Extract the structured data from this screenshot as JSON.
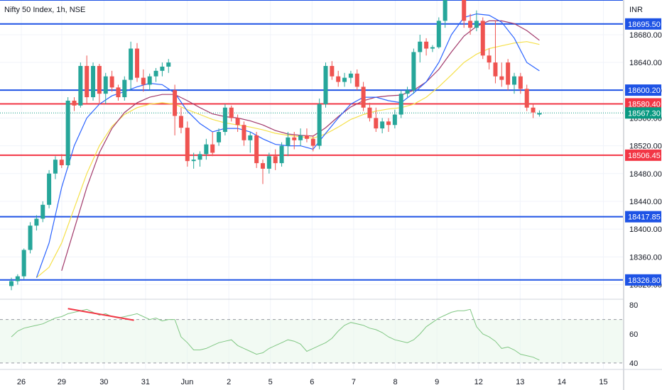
{
  "chart_data": {
    "type": "candlestick",
    "title": "Nifty 50 Index, 1h, NSE",
    "currency": "INR",
    "price_axis": {
      "ylim": [
        18300,
        18730
      ],
      "ticks": [
        18680,
        18640,
        18600,
        18560,
        18520,
        18480,
        18440,
        18400,
        18360,
        18320
      ]
    },
    "rsi_axis": {
      "ylim": [
        36,
        84
      ],
      "ticks": [
        80,
        60,
        40
      ],
      "bands": [
        70,
        40
      ]
    },
    "x_ticks": [
      {
        "label": "26",
        "slot": 0
      },
      {
        "label": "29",
        "slot": 6.5
      },
      {
        "label": "30",
        "slot": 13.3
      },
      {
        "label": "31",
        "slot": 20
      },
      {
        "label": "Jun",
        "slot": 26.7
      },
      {
        "label": "2",
        "slot": 33.4
      },
      {
        "label": "5",
        "slot": 40.1
      },
      {
        "label": "6",
        "slot": 46.8
      },
      {
        "label": "7",
        "slot": 53.5
      },
      {
        "label": "8",
        "slot": 60.2
      },
      {
        "label": "9",
        "slot": 66.9
      },
      {
        "label": "12",
        "slot": 73.6
      },
      {
        "label": "13",
        "slot": 80.3
      },
      {
        "label": "14",
        "slot": 87
      },
      {
        "label": "15",
        "slot": 93.7
      }
    ],
    "levels": [
      {
        "value": 18730,
        "color": "#1e53e5",
        "label": ""
      },
      {
        "value": 18695.5,
        "color": "#1e53e5",
        "label": "18695.50"
      },
      {
        "value": 18600.2,
        "color": "#1e53e5",
        "label": "18600.20"
      },
      {
        "value": 18580.4,
        "color": "#f23645",
        "label": "18580.40"
      },
      {
        "value": 18506.45,
        "color": "#f23645",
        "label": "18506.45"
      },
      {
        "value": 18417.85,
        "color": "#1e53e5",
        "label": "18417.85"
      },
      {
        "value": 18326.8,
        "color": "#1e53e5",
        "label": "18326.80"
      }
    ],
    "last_price": {
      "value": 18567.3,
      "label": "18567.30",
      "color": "#089981"
    },
    "candles": [
      [
        18318,
        18330,
        18312,
        18325
      ],
      [
        18325,
        18335,
        18320,
        18332
      ],
      [
        18332,
        18372,
        18328,
        18370
      ],
      [
        18370,
        18410,
        18365,
        18405
      ],
      [
        18405,
        18420,
        18398,
        18415
      ],
      [
        18415,
        18440,
        18410,
        18435
      ],
      [
        18435,
        18485,
        18430,
        18480
      ],
      [
        18480,
        18505,
        18472,
        18500
      ],
      [
        18500,
        18508,
        18488,
        18492
      ],
      [
        18492,
        18590,
        18488,
        18585
      ],
      [
        18585,
        18590,
        18570,
        18578
      ],
      [
        18578,
        18640,
        18575,
        18635
      ],
      [
        18635,
        18650,
        18580,
        18590
      ],
      [
        18590,
        18640,
        18585,
        18635
      ],
      [
        18635,
        18638,
        18580,
        18595
      ],
      [
        18595,
        18625,
        18580,
        18620
      ],
      [
        18620,
        18628,
        18598,
        18604
      ],
      [
        18604,
        18608,
        18585,
        18590
      ],
      [
        18590,
        18620,
        18585,
        18615
      ],
      [
        18615,
        18670,
        18600,
        18660
      ],
      [
        18660,
        18668,
        18612,
        18618
      ],
      [
        18618,
        18630,
        18598,
        18608
      ],
      [
        18608,
        18624,
        18600,
        18620
      ],
      [
        18620,
        18632,
        18612,
        18628
      ],
      [
        18628,
        18640,
        18620,
        18634
      ],
      [
        18634,
        18645,
        18625,
        18640
      ],
      [
        18600,
        18608,
        18535,
        18563
      ],
      [
        18563,
        18575,
        18538,
        18546
      ],
      [
        18546,
        18555,
        18490,
        18498
      ],
      [
        18498,
        18510,
        18487,
        18500
      ],
      [
        18500,
        18512,
        18490,
        18508
      ],
      [
        18508,
        18530,
        18500,
        18522
      ],
      [
        18522,
        18540,
        18505,
        18510
      ],
      [
        18525,
        18545,
        18520,
        18540
      ],
      [
        18540,
        18580,
        18535,
        18575
      ],
      [
        18575,
        18578,
        18555,
        18560
      ],
      [
        18560,
        18565,
        18540,
        18550
      ],
      [
        18550,
        18555,
        18520,
        18528
      ],
      [
        18528,
        18540,
        18510,
        18535
      ],
      [
        18535,
        18540,
        18488,
        18495
      ],
      [
        18495,
        18500,
        18465,
        18487
      ],
      [
        18487,
        18510,
        18480,
        18505
      ],
      [
        18505,
        18515,
        18485,
        18495
      ],
      [
        18495,
        18525,
        18490,
        18520
      ],
      [
        18520,
        18540,
        18505,
        18532
      ],
      [
        18532,
        18540,
        18515,
        18528
      ],
      [
        18528,
        18545,
        18520,
        18535
      ],
      [
        18535,
        18545,
        18525,
        18530
      ],
      [
        18530,
        18535,
        18512,
        18520
      ],
      [
        18520,
        18588,
        18515,
        18580
      ],
      [
        18580,
        18640,
        18575,
        18635
      ],
      [
        18635,
        18642,
        18615,
        18620
      ],
      [
        18620,
        18628,
        18605,
        18612
      ],
      [
        18612,
        18625,
        18605,
        18618
      ],
      [
        18618,
        18628,
        18610,
        18624
      ],
      [
        18624,
        18630,
        18600,
        18605
      ],
      [
        18605,
        18612,
        18570,
        18575
      ],
      [
        18575,
        18582,
        18555,
        18560
      ],
      [
        18560,
        18575,
        18540,
        18545
      ],
      [
        18545,
        18560,
        18538,
        18555
      ],
      [
        18555,
        18560,
        18540,
        18550
      ],
      [
        18550,
        18572,
        18545,
        18565
      ],
      [
        18565,
        18600,
        18560,
        18595
      ],
      [
        18595,
        18605,
        18590,
        18600
      ],
      [
        18600,
        18660,
        18595,
        18655
      ],
      [
        18655,
        18680,
        18640,
        18670
      ],
      [
        18670,
        18675,
        18650,
        18660
      ],
      [
        18660,
        18665,
        18655,
        18662
      ],
      [
        18662,
        18705,
        18660,
        18700
      ],
      [
        18700,
        18745,
        18690,
        18740
      ],
      [
        18740,
        18760,
        18730,
        18750
      ],
      [
        18750,
        18770,
        18740,
        18755
      ],
      [
        18750,
        18755,
        18690,
        18700
      ],
      [
        18700,
        18710,
        18680,
        18690
      ],
      [
        18690,
        18715,
        18685,
        18700
      ],
      [
        18700,
        18705,
        18645,
        18650
      ],
      [
        18650,
        18660,
        18630,
        18640
      ],
      [
        18640,
        18700,
        18610,
        18620
      ],
      [
        18620,
        18640,
        18605,
        18615
      ],
      [
        18640,
        18645,
        18600,
        18608
      ],
      [
        18608,
        18625,
        18595,
        18620
      ],
      [
        18620,
        18625,
        18595,
        18602
      ],
      [
        18602,
        18608,
        18570,
        18575
      ],
      [
        18575,
        18580,
        18560,
        18568
      ],
      [
        18565,
        18571,
        18562,
        18567.3
      ]
    ],
    "ema_fast": [
      [
        4,
        18330
      ],
      [
        6,
        18380
      ],
      [
        8,
        18460
      ],
      [
        10,
        18520
      ],
      [
        12,
        18560
      ],
      [
        14,
        18580
      ],
      [
        16,
        18592
      ],
      [
        18,
        18598
      ],
      [
        20,
        18605
      ],
      [
        22,
        18610
      ],
      [
        24,
        18608
      ],
      [
        26,
        18596
      ],
      [
        28,
        18570
      ],
      [
        30,
        18552
      ],
      [
        32,
        18540
      ],
      [
        34,
        18545
      ],
      [
        36,
        18545
      ],
      [
        38,
        18540
      ],
      [
        40,
        18530
      ],
      [
        42,
        18522
      ],
      [
        44,
        18520
      ],
      [
        46,
        18520
      ],
      [
        48,
        18515
      ],
      [
        50,
        18538
      ],
      [
        52,
        18560
      ],
      [
        54,
        18580
      ],
      [
        56,
        18590
      ],
      [
        58,
        18590
      ],
      [
        60,
        18585
      ],
      [
        62,
        18582
      ],
      [
        64,
        18596
      ],
      [
        66,
        18612
      ],
      [
        68,
        18640
      ],
      [
        70,
        18680
      ],
      [
        72,
        18705
      ],
      [
        74,
        18710
      ],
      [
        76,
        18708
      ],
      [
        78,
        18698
      ],
      [
        80,
        18675
      ],
      [
        82,
        18640
      ],
      [
        84,
        18628
      ]
    ],
    "ema_slow": [
      [
        8,
        18340
      ],
      [
        10,
        18400
      ],
      [
        12,
        18460
      ],
      [
        14,
        18510
      ],
      [
        16,
        18545
      ],
      [
        18,
        18568
      ],
      [
        20,
        18582
      ],
      [
        22,
        18590
      ],
      [
        24,
        18594
      ],
      [
        26,
        18594
      ],
      [
        28,
        18585
      ],
      [
        30,
        18575
      ],
      [
        32,
        18566
      ],
      [
        34,
        18562
      ],
      [
        36,
        18560
      ],
      [
        38,
        18556
      ],
      [
        40,
        18550
      ],
      [
        42,
        18542
      ],
      [
        44,
        18537
      ],
      [
        46,
        18535
      ],
      [
        48,
        18534
      ],
      [
        50,
        18546
      ],
      [
        52,
        18562
      ],
      [
        54,
        18576
      ],
      [
        56,
        18585
      ],
      [
        58,
        18590
      ],
      [
        60,
        18592
      ],
      [
        62,
        18593
      ],
      [
        64,
        18600
      ],
      [
        66,
        18612
      ],
      [
        68,
        18630
      ],
      [
        70,
        18655
      ],
      [
        72,
        18678
      ],
      [
        74,
        18692
      ],
      [
        76,
        18700
      ],
      [
        78,
        18700
      ],
      [
        80,
        18696
      ],
      [
        82,
        18686
      ],
      [
        84,
        18672
      ]
    ],
    "ema_long": [
      [
        4,
        18330
      ],
      [
        6,
        18345
      ],
      [
        8,
        18380
      ],
      [
        10,
        18430
      ],
      [
        12,
        18480
      ],
      [
        14,
        18520
      ],
      [
        16,
        18548
      ],
      [
        18,
        18565
      ],
      [
        20,
        18575
      ],
      [
        22,
        18580
      ],
      [
        24,
        18582
      ],
      [
        26,
        18580
      ],
      [
        28,
        18572
      ],
      [
        30,
        18565
      ],
      [
        32,
        18558
      ],
      [
        34,
        18553
      ],
      [
        36,
        18550
      ],
      [
        38,
        18547
      ],
      [
        40,
        18543
      ],
      [
        42,
        18538
      ],
      [
        44,
        18535
      ],
      [
        46,
        18533
      ],
      [
        48,
        18531
      ],
      [
        50,
        18537
      ],
      [
        52,
        18547
      ],
      [
        54,
        18558
      ],
      [
        56,
        18565
      ],
      [
        58,
        18570
      ],
      [
        60,
        18573
      ],
      [
        62,
        18575
      ],
      [
        64,
        18580
      ],
      [
        66,
        18590
      ],
      [
        68,
        18605
      ],
      [
        70,
        18622
      ],
      [
        72,
        18640
      ],
      [
        74,
        18652
      ],
      [
        76,
        18660
      ],
      [
        78,
        18664
      ],
      [
        80,
        18668
      ],
      [
        82,
        18670
      ],
      [
        84,
        18666
      ]
    ],
    "rsi": [
      58,
      62,
      64,
      65,
      66,
      67,
      69,
      71,
      72,
      74,
      75,
      76,
      77,
      75,
      73,
      74,
      72,
      71,
      72,
      73,
      74,
      72,
      70,
      71,
      69,
      70,
      70,
      58,
      54,
      49,
      49,
      50,
      52,
      54,
      55,
      56,
      52,
      50,
      48,
      46,
      47,
      50,
      52,
      54,
      56,
      55,
      53,
      48,
      50,
      52,
      54,
      57,
      62,
      66,
      68,
      67,
      66,
      64,
      63,
      61,
      58,
      56,
      55,
      54,
      56,
      60,
      65,
      68,
      71,
      73,
      75,
      76,
      76,
      77,
      65,
      60,
      58,
      55,
      50,
      51,
      49,
      46,
      45,
      44,
      42
    ],
    "divergence": [
      [
        9,
        77.5
      ],
      [
        19.5,
        69.5
      ]
    ]
  }
}
